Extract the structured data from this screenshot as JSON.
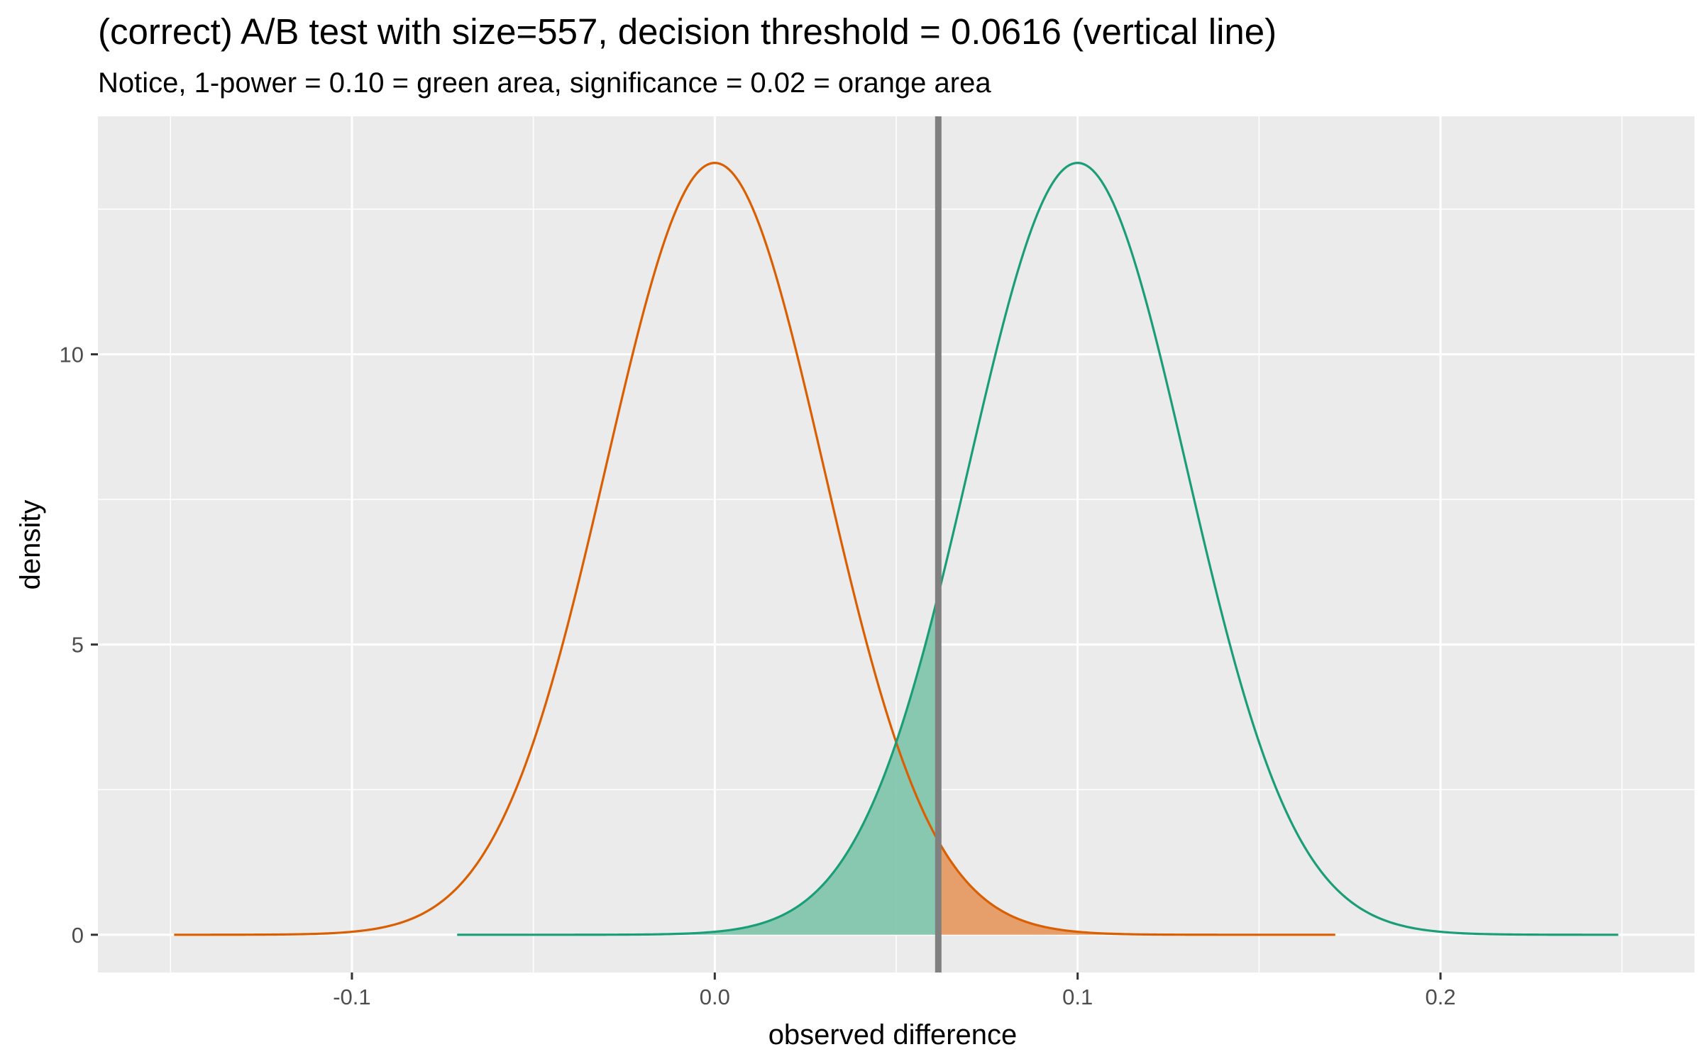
{
  "chart_data": {
    "type": "area",
    "title": "(correct) A/B test with size=557, decision threshold = 0.0616 (vertical line)",
    "subtitle": "Notice, 1-power = 0.10 = green area, significance = 0.02 = orange area",
    "xlabel": "observed difference",
    "ylabel": "density",
    "xlim": [
      -0.17,
      0.27
    ],
    "ylim": [
      -0.65,
      14.1
    ],
    "x_ticks": [
      -0.1,
      0.0,
      0.1,
      0.2
    ],
    "x_tick_labels": [
      "-0.1",
      "0.0",
      "0.1",
      "0.2"
    ],
    "y_ticks": [
      0,
      5,
      10
    ],
    "y_tick_labels": [
      "0",
      "5",
      "10"
    ],
    "grid": true,
    "legend": "none",
    "threshold": 0.0616,
    "series": [
      {
        "mean": 0.0,
        "sd": 0.03,
        "x_range": [
          -0.149,
          0.171
        ],
        "color": "#d95f02",
        "shade": "above-threshold",
        "shade_color": "#e69a63"
      },
      {
        "mean": 0.1,
        "sd": 0.03,
        "x_range": [
          -0.071,
          0.249
        ],
        "color": "#1b9e77",
        "shade": "below-threshold",
        "shade_color": "#83c5ad"
      }
    ],
    "colors": {
      "panel": "#ebebeb",
      "grid": "#ffffff",
      "threshold_line": "#808080"
    }
  }
}
